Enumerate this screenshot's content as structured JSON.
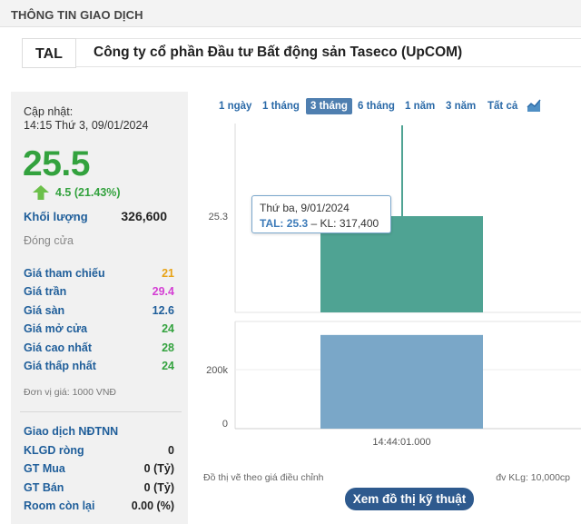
{
  "section": {
    "title": "THÔNG TIN GIAO DỊCH"
  },
  "ticker": {
    "code": "TAL",
    "company": "Công ty cổ phần Đầu tư Bất động sản Taseco (UpCOM)"
  },
  "summary": {
    "updated_label": "Cập nhật:",
    "updated_time": "14:15 Thứ 3, 09/01/2024",
    "price": "25.5",
    "change": "4.5 (21.43%)",
    "volume_label": "Khối lượng",
    "volume_value": "326,600",
    "close_label": "Đóng cửa",
    "price_rows": [
      {
        "label": "Giá tham chiếu",
        "value": "21",
        "color": "#e8a317"
      },
      {
        "label": "Giá trần",
        "value": "29.4",
        "color": "#d43fd4"
      },
      {
        "label": "Giá sàn",
        "value": "12.6",
        "color": "#1f5e9a"
      },
      {
        "label": "Giá mở cửa",
        "value": "24",
        "color": "#33a23e"
      },
      {
        "label": "Giá cao nhất",
        "value": "28",
        "color": "#33a23e"
      },
      {
        "label": "Giá thấp nhất",
        "value": "24",
        "color": "#33a23e"
      }
    ],
    "unit_note": "Đơn vị giá: 1000 VNĐ",
    "foreign": {
      "title": "Giao dịch NĐTNN",
      "rows": [
        {
          "label": "KLGD ròng",
          "value": "0"
        },
        {
          "label": "GT Mua",
          "value": "0 (Tỷ)"
        },
        {
          "label": "GT Bán",
          "value": "0 (Tỷ)"
        },
        {
          "label": "Room còn lại",
          "value": "0.00 (%)"
        }
      ]
    }
  },
  "ranges": {
    "tabs": [
      "1 ngày",
      "1 tháng",
      "3 tháng",
      "6 tháng",
      "1 năm",
      "3 năm",
      "Tất cả"
    ],
    "active": "3 tháng"
  },
  "chart_data": {
    "type": "bar",
    "x": [
      "14:44:01.000"
    ],
    "price_axis_ticks": [
      "25.3"
    ],
    "volume_axis_ticks": [
      "200k",
      "0"
    ],
    "series": [
      {
        "name": "TAL",
        "values": [
          25.3
        ],
        "color": "#4fa393"
      },
      {
        "name": "KL",
        "values": [
          317400
        ],
        "color": "#7aa7c8"
      }
    ],
    "high_line_color": "#4fa393"
  },
  "tooltip": {
    "date": "Thứ ba, 9/01/2024",
    "series_label": "TAL: 25.3",
    "volume_text": "– KL: 317,400"
  },
  "footer": {
    "note_left": "Đồ thị vẽ theo giá điều chỉnh",
    "note_right": "đv KLg: 10,000cp",
    "tech_button": "Xem đồ thị kỹ thuật"
  },
  "icons": {
    "up_arrow": "up-arrow-icon",
    "chart_type": "area-chart-icon"
  }
}
